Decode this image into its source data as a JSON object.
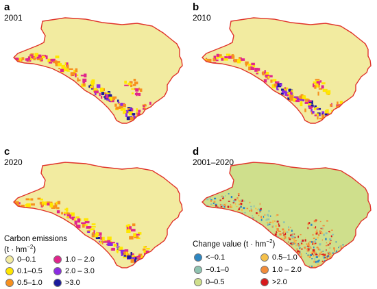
{
  "panels": [
    {
      "letter": "a",
      "year": "2001"
    },
    {
      "letter": "b",
      "year": "2010"
    },
    {
      "letter": "c",
      "year": "2020"
    },
    {
      "letter": "d",
      "year": "2001–2020"
    }
  ],
  "colors": {
    "border": "#e0332a",
    "base_emission": "#f2eba0",
    "base_change": "#cfdf8c",
    "yellow": "#ffe600",
    "orange": "#f7901e",
    "magenta": "#e0258c",
    "purple": "#8a2be2",
    "navy": "#1a1a9c"
  },
  "legend_emissions": {
    "title_text": "Carbon emissions",
    "unit_prefix": "(t · hm",
    "unit_sup": "−2",
    "unit_suffix": ")",
    "items": [
      {
        "label": "0–0.1",
        "color": "#f2eba0"
      },
      {
        "label": "0.1–0.5",
        "color": "#ffe600"
      },
      {
        "label": "0.5–1.0",
        "color": "#f7901e"
      },
      {
        "label": "1.0 – 2.0",
        "color": "#e0258c"
      },
      {
        "label": "2.0 – 3.0",
        "color": "#8a2be2"
      },
      {
        "label": ">3.0",
        "color": "#1a1a9c"
      }
    ]
  },
  "legend_change": {
    "title_text": "Change value (t · hm",
    "unit_sup": "−2",
    "unit_suffix": ")",
    "items": [
      {
        "label": "<−0.1",
        "color": "#2e86c1"
      },
      {
        "label": "−0.1–0",
        "color": "#8fc3b0"
      },
      {
        "label": "0–0.5",
        "color": "#cfdf8c"
      },
      {
        "label": "0.5–1.0",
        "color": "#f5c04a"
      },
      {
        "label": "1.0 – 2.0",
        "color": "#f28c3a"
      },
      {
        "label": ">2.0",
        "color": "#d7191c"
      }
    ]
  }
}
